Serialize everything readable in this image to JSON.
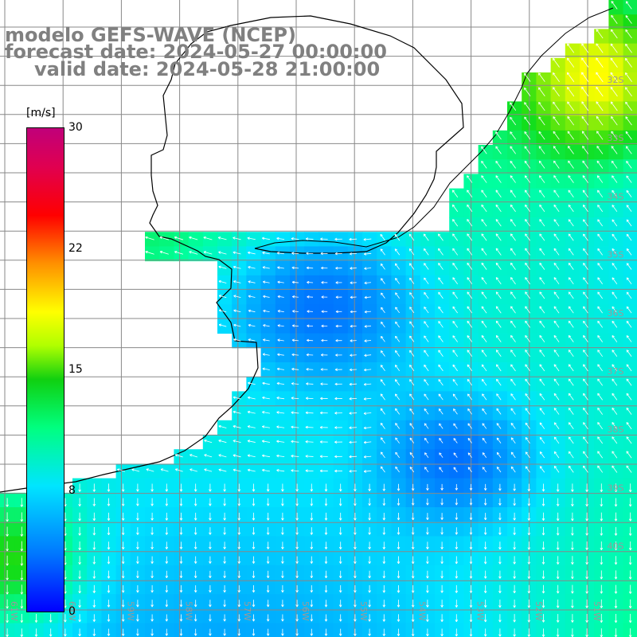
{
  "title": {
    "line1": "modelo GEFS-WAVE (NCEP)",
    "line2": "forecast date: 2024-05-27 00:00:00",
    "line3": "valid date: 2024-05-28 21:00:00"
  },
  "colorbar": {
    "unit": "[m/s]",
    "ticks": [
      "30",
      "22",
      "15",
      "8",
      "0"
    ],
    "colors": [
      "#0000ff",
      "#0078ff",
      "#00e5ff",
      "#00ff80",
      "#10d010",
      "#ffff00",
      "#ff9000",
      "#ff0000",
      "#c0007a"
    ]
  },
  "map": {
    "lat_labels": [
      "32S",
      "33S",
      "34S",
      "35S",
      "36S",
      "37S",
      "38S",
      "39S",
      "40S"
    ],
    "lon_labels": [
      "61W",
      "60W",
      "59W",
      "58W",
      "57W",
      "56W",
      "55W",
      "54W",
      "53W",
      "52W",
      "51W"
    ],
    "grid_color": "#888888",
    "land_color": "#ffffff",
    "coast_color": "#000000"
  }
}
